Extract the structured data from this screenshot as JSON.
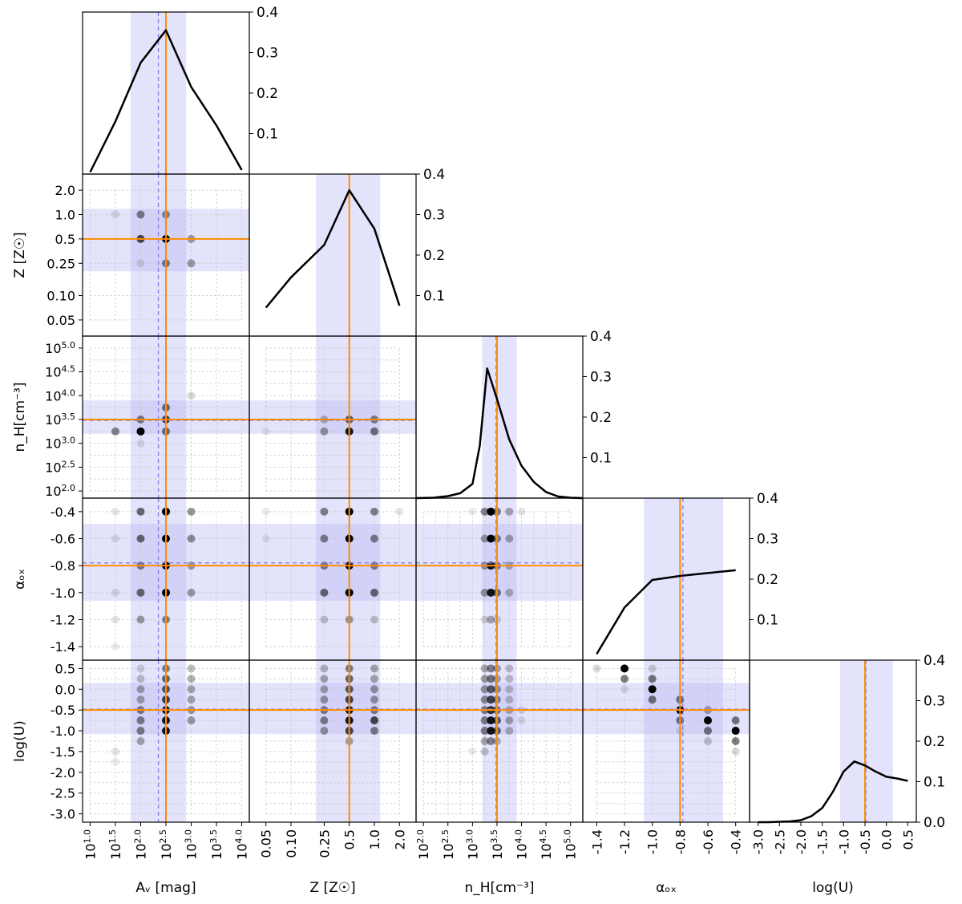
{
  "chart_data": {
    "type": "corner",
    "description_labels": {
      "x_axis_labels": [
        "A_V [mag]",
        "Z [Z_sun]",
        "n_H[cm^-3]",
        "alpha_ox",
        "log(U)"
      ]
    },
    "parameters": [
      {
        "key": "av",
        "xlabel": "Aᵥ [mag]",
        "ylabel": "",
        "ticks": [
          1.0,
          1.5,
          2.0,
          2.5,
          3.0,
          3.5,
          4.0
        ],
        "tick_labels": [
          "10^1.0",
          "10^1.5",
          "10^2.0",
          "10^2.5",
          "10^3.0",
          "10^3.5",
          "10^4.0"
        ],
        "grid": [
          1.0,
          1.5,
          2.0,
          2.5,
          3.0,
          3.5,
          4.0
        ],
        "range": [
          0.85,
          4.15
        ],
        "best": 2.5,
        "median": 2.35,
        "band": [
          1.8,
          2.9
        ],
        "marginal_x": [
          1.0,
          1.5,
          2.0,
          2.5,
          3.0,
          3.5,
          4.0
        ],
        "marginal_y": [
          0.005,
          0.13,
          0.275,
          0.355,
          0.215,
          0.12,
          0.01
        ]
      },
      {
        "key": "z",
        "xlabel": "Z [Z☉]",
        "ylabel": "Z [Z☉]",
        "ticks": [
          -1.301,
          -1.0,
          -0.602,
          -0.301,
          0.0,
          0.301
        ],
        "tick_labels": [
          "0.05",
          "0.10",
          "0.25",
          "0.5",
          "1.0",
          "2.0"
        ],
        "grid": [
          -1.301,
          -1.0,
          -0.602,
          -0.301,
          0.0,
          0.301
        ],
        "range": [
          -1.5,
          0.5
        ],
        "best": -0.301,
        "median": -0.301,
        "band": [
          -0.7,
          0.07
        ],
        "marginal_x": [
          -1.301,
          -1.0,
          -0.602,
          -0.301,
          0.0,
          0.301
        ],
        "marginal_y": [
          0.07,
          0.145,
          0.225,
          0.36,
          0.265,
          0.075
        ]
      },
      {
        "key": "nh",
        "xlabel": "n_H[cm⁻³]",
        "ylabel": "n_H[cm⁻³]",
        "ticks": [
          2.0,
          2.5,
          3.0,
          3.5,
          4.0,
          4.5,
          5.0
        ],
        "tick_labels": [
          "10^2.0",
          "10^2.5",
          "10^3.0",
          "10^3.5",
          "10^4.0",
          "10^4.5",
          "10^5.0"
        ],
        "grid": [
          2.0,
          2.25,
          2.5,
          2.75,
          3.0,
          3.25,
          3.5,
          3.75,
          4.0,
          4.25,
          4.5,
          4.75,
          5.0
        ],
        "range": [
          1.85,
          5.25
        ],
        "best": 3.5,
        "median": 3.48,
        "band": [
          3.2,
          3.9
        ],
        "marginal_x": [
          1.85,
          2.2,
          2.5,
          2.75,
          3.0,
          3.15,
          3.3,
          3.5,
          3.75,
          4.0,
          4.25,
          4.5,
          4.75,
          5.0,
          5.25
        ],
        "marginal_y": [
          0.0,
          0.001,
          0.005,
          0.012,
          0.035,
          0.13,
          0.32,
          0.245,
          0.145,
          0.08,
          0.04,
          0.015,
          0.004,
          0.001,
          0.0
        ]
      },
      {
        "key": "aox",
        "xlabel": "αₒₓ",
        "ylabel": "αₒₓ",
        "ticks": [
          -1.4,
          -1.2,
          -1.0,
          -0.8,
          -0.6,
          -0.4
        ],
        "tick_labels": [
          "-1.4",
          "-1.2",
          "-1.0",
          "-0.8",
          "-0.6",
          "-0.4"
        ],
        "grid": [
          -1.4,
          -1.2,
          -1.0,
          -0.8,
          -0.6,
          -0.4
        ],
        "range": [
          -1.5,
          -0.3
        ],
        "best": -0.8,
        "median": -0.78,
        "band": [
          -1.06,
          -0.49
        ],
        "marginal_x": [
          -1.4,
          -1.2,
          -1.0,
          -0.8,
          -0.6,
          -0.4
        ],
        "marginal_y": [
          0.015,
          0.13,
          0.198,
          0.208,
          0.215,
          0.222
        ]
      },
      {
        "key": "logu",
        "xlabel": "log(U)",
        "ylabel": "log(U)",
        "ticks": [
          -3.0,
          -2.5,
          -2.0,
          -1.5,
          -1.0,
          -0.5,
          0.0,
          0.5
        ],
        "tick_labels": [
          "-3.0",
          "-2.5",
          "-2.0",
          "-1.5",
          "-1.0",
          "-0.5",
          "0.0",
          "0.5"
        ],
        "yticks": [
          -3.0,
          -2.75,
          -2.5,
          -2.25,
          -2.0,
          -1.75,
          -1.5,
          -1.25,
          -1.0,
          -0.75,
          -0.5,
          -0.25,
          0.0,
          0.25,
          0.5
        ],
        "ytick_labels": [
          "-3.0",
          "-2.5",
          "-2.0",
          "-1.5",
          "-1.0",
          "-0.5",
          "0.0",
          "0.5"
        ],
        "grid": [
          -3.0,
          -2.75,
          -2.5,
          -2.25,
          -2.0,
          -1.75,
          -1.5,
          -1.25,
          -1.0,
          -0.75,
          -0.5,
          -0.25,
          0.0,
          0.25,
          0.5
        ],
        "range": [
          -3.2,
          0.7
        ],
        "best": -0.5,
        "median": -0.48,
        "band": [
          -1.08,
          0.15
        ],
        "marginal_x": [
          -3.0,
          -2.75,
          -2.5,
          -2.25,
          -2.0,
          -1.75,
          -1.5,
          -1.25,
          -1.0,
          -0.75,
          -0.5,
          -0.25,
          0.0,
          0.25,
          0.5
        ],
        "marginal_y": [
          0.0,
          0.0,
          0.001,
          0.002,
          0.005,
          0.015,
          0.035,
          0.075,
          0.125,
          0.15,
          0.14,
          0.125,
          0.112,
          0.108,
          0.102
        ]
      }
    ],
    "marginal_axis": {
      "range": [
        0.0,
        0.4
      ],
      "ticks": [
        0.1,
        0.2,
        0.3,
        0.4
      ],
      "tick_labels": [
        "0.1",
        "0.2",
        "0.3",
        "0.4"
      ],
      "last_ticks": [
        0.0,
        0.1,
        0.2,
        0.3,
        0.4
      ],
      "last_tick_labels": [
        "0.0",
        "0.1",
        "0.2",
        "0.3",
        "0.4"
      ]
    },
    "joint_points": {
      "av|z": [
        [
          1.5,
          0.0,
          0.1
        ],
        [
          2.0,
          0.0,
          0.45
        ],
        [
          2.5,
          0.0,
          0.4
        ],
        [
          2.0,
          -0.301,
          0.7
        ],
        [
          2.5,
          -0.301,
          1.0
        ],
        [
          3.0,
          -0.301,
          0.35
        ],
        [
          2.0,
          -0.602,
          0.1
        ],
        [
          2.5,
          -0.602,
          0.45
        ],
        [
          3.0,
          -0.602,
          0.35
        ]
      ],
      "av|nh": [
        [
          1.5,
          3.25,
          0.45
        ],
        [
          2.0,
          3.25,
          1.0
        ],
        [
          2.5,
          3.25,
          0.5
        ],
        [
          2.0,
          3.5,
          0.45
        ],
        [
          2.5,
          3.5,
          0.7
        ],
        [
          2.5,
          3.75,
          0.5
        ],
        [
          3.0,
          4.0,
          0.15
        ],
        [
          2.0,
          3.0,
          0.1
        ]
      ],
      "z|nh": [
        [
          -0.602,
          3.25,
          0.35
        ],
        [
          -0.301,
          3.25,
          0.9
        ],
        [
          0.0,
          3.25,
          0.5
        ],
        [
          -0.602,
          3.5,
          0.25
        ],
        [
          -0.301,
          3.5,
          0.6
        ],
        [
          0.0,
          3.5,
          0.45
        ],
        [
          -1.301,
          3.25,
          0.08
        ]
      ],
      "av|aox": [
        [
          1.5,
          -0.4,
          0.1
        ],
        [
          2.0,
          -0.4,
          0.55
        ],
        [
          2.5,
          -0.4,
          1.0
        ],
        [
          3.0,
          -0.4,
          0.4
        ],
        [
          1.5,
          -0.6,
          0.1
        ],
        [
          2.0,
          -0.6,
          0.55
        ],
        [
          2.5,
          -0.6,
          1.0
        ],
        [
          3.0,
          -0.6,
          0.4
        ],
        [
          2.0,
          -0.8,
          0.45
        ],
        [
          2.5,
          -0.8,
          1.0
        ],
        [
          3.0,
          -0.8,
          0.35
        ],
        [
          1.5,
          -1.0,
          0.1
        ],
        [
          2.0,
          -1.0,
          0.55
        ],
        [
          2.5,
          -1.0,
          1.0
        ],
        [
          3.0,
          -1.0,
          0.35
        ],
        [
          1.5,
          -1.2,
          0.1
        ],
        [
          2.0,
          -1.2,
          0.35
        ],
        [
          2.5,
          -1.2,
          0.45
        ],
        [
          1.5,
          -1.4,
          0.08
        ]
      ],
      "z|aox": [
        [
          -1.301,
          -0.4,
          0.08
        ],
        [
          -0.602,
          -0.4,
          0.45
        ],
        [
          -0.301,
          -0.4,
          1.0
        ],
        [
          0.0,
          -0.4,
          0.45
        ],
        [
          0.301,
          -0.4,
          0.1
        ],
        [
          -1.301,
          -0.6,
          0.08
        ],
        [
          -0.602,
          -0.6,
          0.45
        ],
        [
          -0.301,
          -0.6,
          1.0
        ],
        [
          0.0,
          -0.6,
          0.45
        ],
        [
          -0.602,
          -0.8,
          0.45
        ],
        [
          -0.301,
          -0.8,
          1.0
        ],
        [
          0.0,
          -0.8,
          0.45
        ],
        [
          -0.602,
          -1.0,
          0.55
        ],
        [
          -0.301,
          -1.0,
          1.0
        ],
        [
          0.0,
          -1.0,
          0.55
        ],
        [
          -0.602,
          -1.2,
          0.2
        ],
        [
          -0.301,
          -1.2,
          0.35
        ],
        [
          0.0,
          -1.2,
          0.2
        ]
      ],
      "nh|aox": [
        [
          3.0,
          -0.4,
          0.08
        ],
        [
          3.25,
          -0.4,
          0.45
        ],
        [
          3.375,
          -0.4,
          1.0
        ],
        [
          3.5,
          -0.4,
          0.45
        ],
        [
          3.75,
          -0.4,
          0.3
        ],
        [
          4.0,
          -0.4,
          0.1
        ],
        [
          3.25,
          -0.6,
          0.35
        ],
        [
          3.375,
          -0.6,
          1.0
        ],
        [
          3.5,
          -0.6,
          0.45
        ],
        [
          3.75,
          -0.6,
          0.3
        ],
        [
          3.25,
          -0.8,
          0.35
        ],
        [
          3.375,
          -0.8,
          0.9
        ],
        [
          3.5,
          -0.8,
          0.45
        ],
        [
          3.75,
          -0.8,
          0.25
        ],
        [
          3.25,
          -1.0,
          0.35
        ],
        [
          3.375,
          -1.0,
          0.9
        ],
        [
          3.5,
          -1.0,
          0.5
        ],
        [
          3.75,
          -1.0,
          0.25
        ],
        [
          3.25,
          -1.2,
          0.15
        ],
        [
          3.375,
          -1.2,
          0.3
        ],
        [
          3.5,
          -1.2,
          0.15
        ]
      ],
      "av|logu": [
        [
          2.0,
          0.5,
          0.15
        ],
        [
          2.5,
          0.5,
          0.45
        ],
        [
          3.0,
          0.5,
          0.25
        ],
        [
          2.0,
          0.25,
          0.2
        ],
        [
          2.5,
          0.25,
          0.55
        ],
        [
          3.0,
          0.25,
          0.3
        ],
        [
          2.0,
          0.0,
          0.3
        ],
        [
          2.5,
          0.0,
          0.6
        ],
        [
          3.0,
          0.0,
          0.3
        ],
        [
          2.0,
          -0.25,
          0.3
        ],
        [
          2.5,
          -0.25,
          0.7
        ],
        [
          3.0,
          -0.25,
          0.3
        ],
        [
          2.0,
          -0.5,
          0.45
        ],
        [
          2.5,
          -0.5,
          0.9
        ],
        [
          3.0,
          -0.5,
          0.35
        ],
        [
          2.0,
          -0.75,
          0.45
        ],
        [
          2.5,
          -0.75,
          0.9
        ],
        [
          3.0,
          -0.75,
          0.35
        ],
        [
          2.0,
          -1.0,
          0.45
        ],
        [
          2.5,
          -1.0,
          0.9
        ],
        [
          2.0,
          -1.25,
          0.3
        ],
        [
          1.5,
          -1.5,
          0.1
        ],
        [
          1.5,
          -1.75,
          0.08
        ]
      ],
      "z|logu": [
        [
          -0.602,
          0.5,
          0.25
        ],
        [
          -0.301,
          0.5,
          0.45
        ],
        [
          0.0,
          0.5,
          0.3
        ],
        [
          -0.602,
          0.25,
          0.3
        ],
        [
          -0.301,
          0.25,
          0.55
        ],
        [
          0.0,
          0.25,
          0.3
        ],
        [
          -0.602,
          0.0,
          0.3
        ],
        [
          -0.301,
          0.0,
          0.6
        ],
        [
          0.0,
          0.0,
          0.35
        ],
        [
          -0.602,
          -0.25,
          0.35
        ],
        [
          -0.301,
          -0.25,
          0.7
        ],
        [
          0.0,
          -0.25,
          0.35
        ],
        [
          -0.602,
          -0.5,
          0.45
        ],
        [
          -0.301,
          -0.5,
          0.9
        ],
        [
          0.0,
          -0.5,
          0.45
        ],
        [
          -0.602,
          -0.75,
          0.45
        ],
        [
          -0.301,
          -0.75,
          0.9
        ],
        [
          0.0,
          -0.75,
          0.7
        ],
        [
          -0.602,
          -1.0,
          0.35
        ],
        [
          -0.301,
          -1.0,
          0.7
        ],
        [
          0.0,
          -1.0,
          0.45
        ],
        [
          -0.301,
          -1.25,
          0.3
        ]
      ],
      "nh|logu": [
        [
          3.25,
          0.5,
          0.3
        ],
        [
          3.375,
          0.5,
          0.45
        ],
        [
          3.5,
          0.5,
          0.3
        ],
        [
          3.75,
          0.5,
          0.2
        ],
        [
          3.25,
          0.25,
          0.35
        ],
        [
          3.375,
          0.25,
          0.5
        ],
        [
          3.5,
          0.25,
          0.3
        ],
        [
          3.75,
          0.25,
          0.2
        ],
        [
          3.25,
          0.0,
          0.35
        ],
        [
          3.375,
          0.0,
          0.6
        ],
        [
          3.5,
          0.0,
          0.35
        ],
        [
          3.75,
          0.0,
          0.2
        ],
        [
          3.25,
          -0.25,
          0.4
        ],
        [
          3.375,
          -0.25,
          0.7
        ],
        [
          3.5,
          -0.25,
          0.4
        ],
        [
          3.75,
          -0.25,
          0.2
        ],
        [
          3.25,
          -0.5,
          0.45
        ],
        [
          3.375,
          -0.5,
          0.8
        ],
        [
          3.5,
          -0.5,
          0.5
        ],
        [
          3.75,
          -0.5,
          0.25
        ],
        [
          4.0,
          -0.5,
          0.1
        ],
        [
          3.25,
          -0.75,
          0.45
        ],
        [
          3.375,
          -0.75,
          0.9
        ],
        [
          3.5,
          -0.75,
          0.6
        ],
        [
          3.75,
          -0.75,
          0.3
        ],
        [
          4.0,
          -0.75,
          0.1
        ],
        [
          3.25,
          -1.0,
          0.45
        ],
        [
          3.375,
          -1.0,
          0.9
        ],
        [
          3.5,
          -1.0,
          0.55
        ],
        [
          3.75,
          -1.0,
          0.25
        ],
        [
          3.25,
          -1.25,
          0.3
        ],
        [
          3.375,
          -1.25,
          0.45
        ],
        [
          3.5,
          -1.25,
          0.25
        ],
        [
          3.0,
          -1.5,
          0.08
        ],
        [
          3.25,
          -1.5,
          0.2
        ]
      ],
      "aox|logu": [
        [
          -1.4,
          0.5,
          0.15
        ],
        [
          -1.2,
          0.5,
          1.0
        ],
        [
          -1.2,
          0.25,
          0.5
        ],
        [
          -1.2,
          0.0,
          0.1
        ],
        [
          -1.0,
          0.5,
          0.15
        ],
        [
          -1.0,
          0.25,
          0.5
        ],
        [
          -1.0,
          0.0,
          1.0
        ],
        [
          -1.0,
          -0.25,
          0.5
        ],
        [
          -0.8,
          -0.25,
          0.5
        ],
        [
          -0.8,
          -0.5,
          1.0
        ],
        [
          -0.8,
          -0.75,
          0.5
        ],
        [
          -0.8,
          -1.0,
          0.1
        ],
        [
          -0.6,
          -0.5,
          0.3
        ],
        [
          -0.6,
          -0.75,
          1.0
        ],
        [
          -0.6,
          -1.0,
          0.5
        ],
        [
          -0.6,
          -1.25,
          0.2
        ],
        [
          -0.4,
          -0.75,
          0.5
        ],
        [
          -0.4,
          -1.0,
          1.0
        ],
        [
          -0.4,
          -1.25,
          0.5
        ],
        [
          -0.4,
          -1.5,
          0.15
        ]
      ]
    },
    "colors": {
      "band": "#b8b8f5",
      "best_line": "#ff8c00",
      "median_line": "#8080e0",
      "curve": "#000000",
      "point": "#000000",
      "grid": "#c8c8c8"
    }
  }
}
